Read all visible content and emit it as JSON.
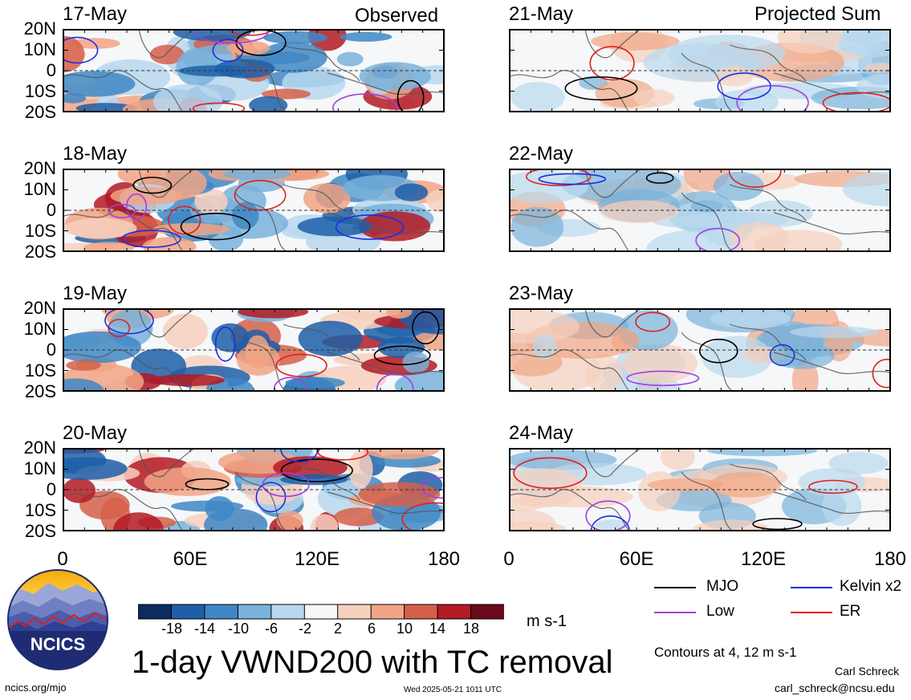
{
  "header": {
    "observed_label": "Observed",
    "projected_label": "Projected Sum"
  },
  "panels_left": [
    {
      "date": "17-May"
    },
    {
      "date": "18-May"
    },
    {
      "date": "19-May"
    },
    {
      "date": "20-May"
    }
  ],
  "panels_right": [
    {
      "date": "21-May"
    },
    {
      "date": "22-May"
    },
    {
      "date": "23-May"
    },
    {
      "date": "24-May"
    }
  ],
  "lat_labels": [
    "20N",
    "10N",
    "0",
    "10S",
    "20S"
  ],
  "lon_labels": [
    "0",
    "60E",
    "120E",
    "180"
  ],
  "colorbar": {
    "labels": [
      "-18",
      "-14",
      "-10",
      "-6",
      "-2",
      "2",
      "6",
      "10",
      "14",
      "18"
    ],
    "colors": [
      "#0a2c5e",
      "#1d5fa8",
      "#3f87c4",
      "#79b2db",
      "#b9d8ee",
      "#f5f7f9",
      "#f7d0be",
      "#f1a585",
      "#d5604a",
      "#b31a24",
      "#6b0a1a"
    ],
    "unit": "m s-1"
  },
  "title": "1-day VWND200 with TC removal",
  "legend": {
    "mjo": {
      "label": "MJO",
      "color": "#000000"
    },
    "kelvin": {
      "label": "Kelvin x2",
      "color": "#1a2ee0"
    },
    "low": {
      "label": "Low",
      "color": "#a040e0"
    },
    "er": {
      "label": "ER",
      "color": "#e0201a"
    }
  },
  "contours_note": "Contours at 4, 12 m s-1",
  "author": "Carl Schreck",
  "email": "carl_schreck@ncsu.edu",
  "url": "ncics.org/mjo",
  "timestamp": "Wed 2025-05-21 1011 UTC",
  "logo_text": "NCICS"
}
